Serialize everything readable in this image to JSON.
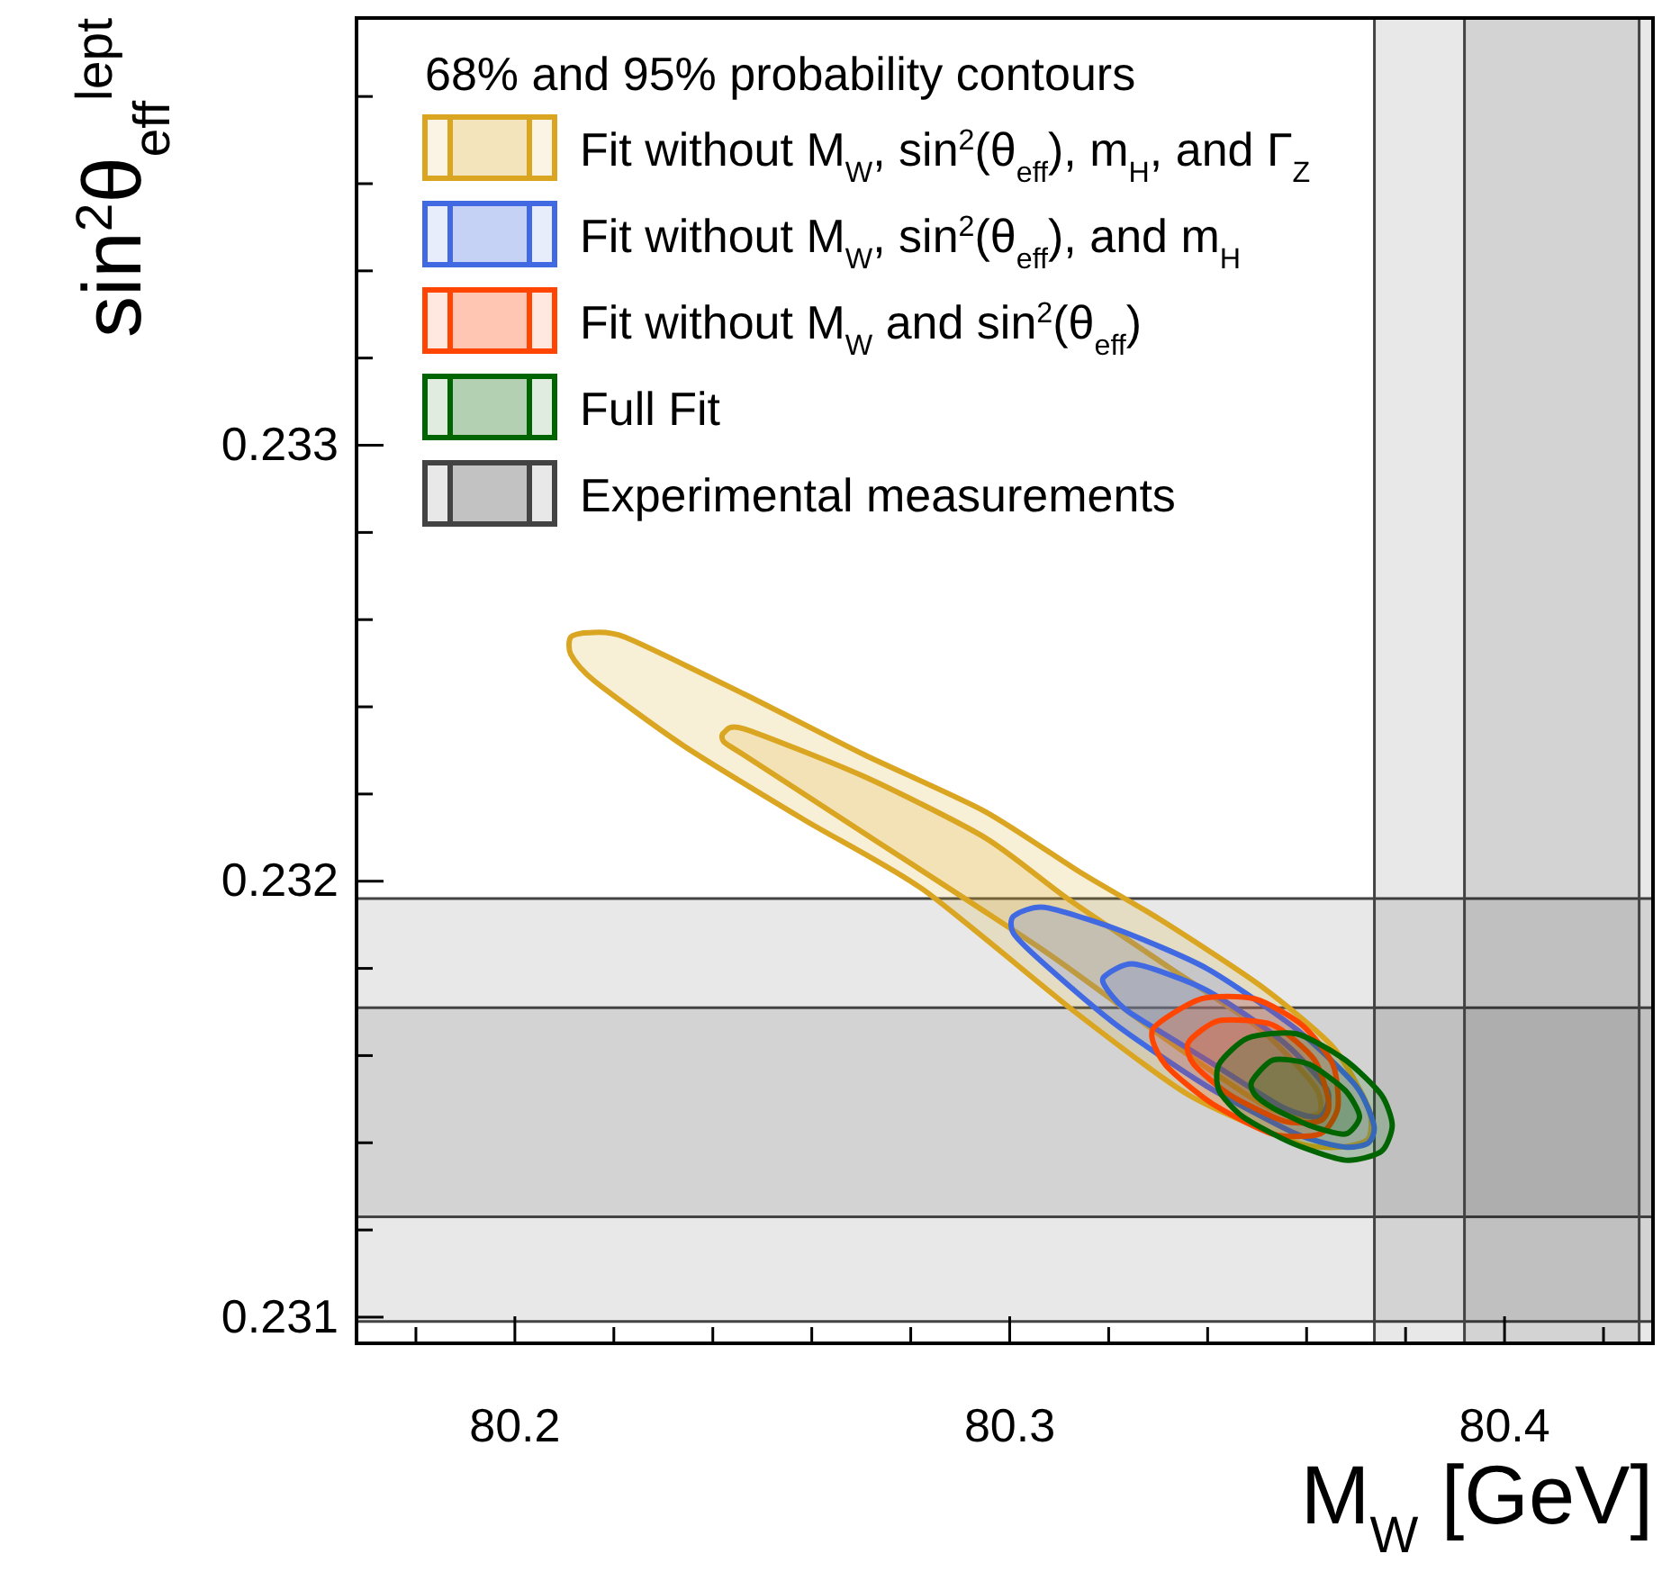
{
  "chart_data": {
    "type": "area",
    "xlabel": "M$_{W}$ [GeV]",
    "ylabel": "sin$^{2}$θ$_{eff}$$^{lept}$",
    "legend_title": "68% and 95% probability contours",
    "legend": "top left",
    "xlim": [
      80.168,
      80.43
    ],
    "ylim": [
      0.23094,
      0.23398
    ],
    "xticks": [
      {
        "value": 80.18,
        "label": null
      },
      80.2,
      {
        "value": 80.22,
        "label": null
      },
      {
        "value": 80.24,
        "label": null
      },
      {
        "value": 80.26,
        "label": null
      },
      {
        "value": 80.28,
        "label": null
      },
      80.3,
      {
        "value": 80.32,
        "label": null
      },
      {
        "value": 80.34,
        "label": null
      },
      {
        "value": 80.36,
        "label": null
      },
      {
        "value": 80.38,
        "label": null
      },
      80.4,
      {
        "value": 80.42,
        "label": null
      }
    ],
    "yticks": [
      0.231,
      {
        "value": 0.2312,
        "label": null
      },
      {
        "value": 0.2314,
        "label": null
      },
      {
        "value": 0.2316,
        "label": null
      },
      {
        "value": 0.2318,
        "label": null
      },
      0.232,
      {
        "value": 0.2322,
        "label": null
      },
      {
        "value": 0.2324,
        "label": null
      },
      {
        "value": 0.2326,
        "label": null
      },
      {
        "value": 0.2328,
        "label": null
      },
      0.233,
      {
        "value": 0.2332,
        "label": null
      },
      {
        "value": 0.2334,
        "label": null
      },
      {
        "value": 0.2336,
        "label": null
      },
      {
        "value": 0.2338,
        "label": null
      }
    ],
    "bands": [
      {
        "axis": "y",
        "from": 0.23099,
        "to": 0.23196,
        "color": "#e8e8e8",
        "label": "Experimental measurements"
      },
      {
        "axis": "y",
        "from": 0.23123,
        "to": 0.23171,
        "color": "#e8e8e8"
      },
      {
        "axis": "x",
        "from": 80.3737,
        "to": 80.43,
        "color": "#e8e8e8"
      },
      {
        "axis": "x",
        "from": 80.3919,
        "to": 80.4272,
        "color": "#e8e8e8"
      }
    ],
    "series": [
      {
        "name": "Fit without M$_{W}$, sin$^{2}$(θ$_{eff}$), m$_{H}$, and Γ$_{Z}$",
        "color": "#daa520",
        "x": [
          80.2113,
          80.2149,
          80.2222,
          80.2462,
          80.2706,
          80.295,
          80.3143,
          80.3307,
          80.3507,
          80.3653,
          80.3725,
          80.3725,
          80.3671,
          80.358,
          80.3361,
          80.3132,
          80.2826,
          80.2586,
          80.2342,
          80.216,
          80.2113
        ],
        "values": [
          0.23256,
          0.23257,
          0.23256,
          0.23243,
          0.23229,
          0.23216,
          0.23202,
          0.23191,
          0.23176,
          0.23162,
          0.23148,
          0.23141,
          0.23139,
          0.2314,
          0.23151,
          0.2317,
          0.23198,
          0.23214,
          0.23231,
          0.23246,
          0.23252
        ]
      },
      {
        "color": "#daa520",
        "x": [
          80.2422,
          80.2462,
          80.2706,
          80.295,
          80.3117,
          80.3325,
          80.3507,
          80.3616,
          80.3627,
          80.358,
          80.3507,
          80.3325,
          80.307,
          80.2706,
          80.2462,
          80.2422
        ],
        "values": [
          0.23234,
          0.23235,
          0.23224,
          0.2321,
          0.23196,
          0.2318,
          0.23166,
          0.23153,
          0.23147,
          0.23146,
          0.23149,
          0.23163,
          0.23184,
          0.23211,
          0.23229,
          0.23232
        ]
      },
      {
        "name": "Fit without M$_{W}$, sin$^{2}$(θ$_{eff}$), and m$_{H}$",
        "color": "#4169e1",
        "x": [
          80.3008,
          80.307,
          80.3216,
          80.3398,
          80.358,
          80.37,
          80.3736,
          80.3725,
          80.3678,
          80.358,
          80.3398,
          80.3216,
          80.307,
          80.3008
        ],
        "values": [
          0.23192,
          0.23194,
          0.23189,
          0.2318,
          0.23166,
          0.23153,
          0.23144,
          0.2314,
          0.23139,
          0.23142,
          0.23153,
          0.23167,
          0.23181,
          0.23188
        ]
      },
      {
        "color": "#4169e1",
        "x": [
          80.319,
          80.3252,
          80.3398,
          80.3554,
          80.3642,
          80.3627,
          80.3554,
          80.3398,
          80.3241,
          80.3198
        ],
        "values": [
          0.23178,
          0.23181,
          0.23175,
          0.23163,
          0.23152,
          0.23146,
          0.23148,
          0.23159,
          0.2317,
          0.23175
        ]
      },
      {
        "name": "Fit without M$_{W}$ and sin$^{2}$(θ$_{eff}$)",
        "color": "#ff4500",
        "x": [
          80.3289,
          80.3387,
          80.3496,
          80.3591,
          80.3653,
          80.3663,
          80.3627,
          80.3532,
          80.3409,
          80.3314
        ],
        "values": [
          0.23166,
          0.23173,
          0.23173,
          0.23167,
          0.23158,
          0.23148,
          0.23142,
          0.23142,
          0.23149,
          0.23158
        ]
      },
      {
        "color": "#ff4500",
        "x": [
          80.3361,
          80.3423,
          80.3532,
          80.3616,
          80.3645,
          80.3627,
          80.3554,
          80.3445,
          80.3372
        ],
        "values": [
          0.23163,
          0.23168,
          0.23167,
          0.23159,
          0.23149,
          0.23145,
          0.23145,
          0.23151,
          0.23158
        ]
      },
      {
        "name": "Full Fit",
        "color": "#006400",
        "x": [
          80.3423,
          80.3481,
          80.358,
          80.3678,
          80.3751,
          80.3773,
          80.3751,
          80.3678,
          80.3569,
          80.3471,
          80.3423
        ],
        "values": [
          0.23158,
          0.23164,
          0.23165,
          0.23159,
          0.23151,
          0.23144,
          0.23138,
          0.23136,
          0.2314,
          0.23146,
          0.23152
        ]
      },
      {
        "color": "#006400",
        "x": [
          80.3489,
          80.3532,
          80.3605,
          80.3678,
          80.3707,
          80.3678,
          80.3605,
          80.3532,
          80.3496
        ],
        "values": [
          0.23154,
          0.23159,
          0.23158,
          0.23152,
          0.23146,
          0.23142,
          0.23144,
          0.23148,
          0.23151
        ]
      }
    ]
  }
}
